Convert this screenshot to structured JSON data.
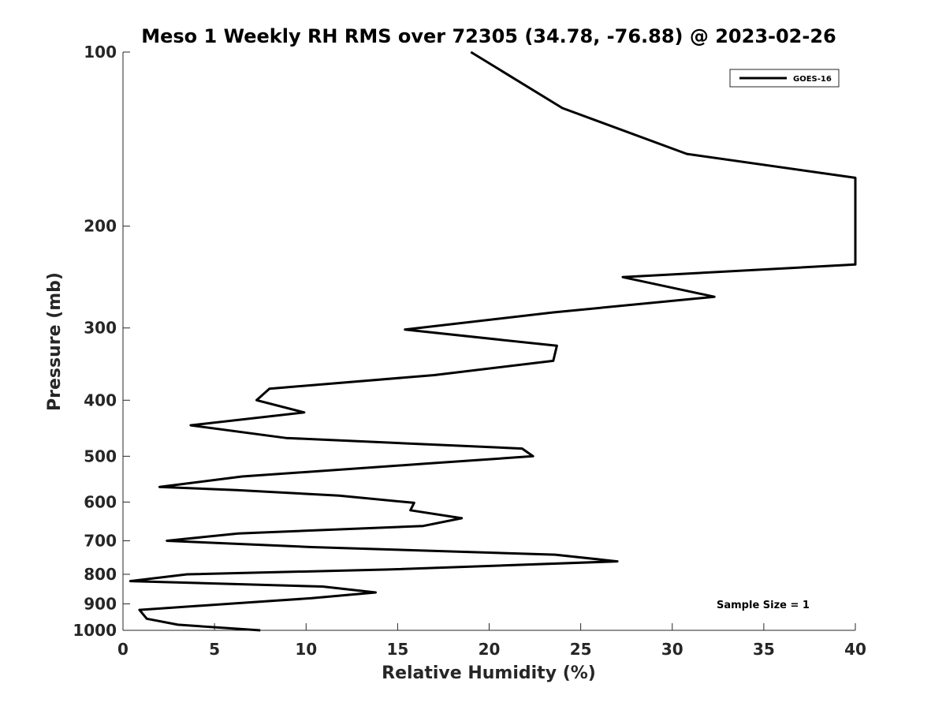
{
  "chart_data": {
    "type": "line",
    "title": "Meso 1 Weekly RH RMS over 72305 (34.78, -76.88) @ 2023-02-26",
    "xlabel": "Relative Humidity (%)",
    "ylabel": "Pressure (mb)",
    "xlim": [
      0,
      40
    ],
    "ylim": [
      100,
      1000
    ],
    "y_scale": "log",
    "y_reversed": true,
    "grid": false,
    "xticks": [
      0,
      5,
      10,
      15,
      20,
      25,
      30,
      35,
      40
    ],
    "yticks": [
      100,
      200,
      300,
      400,
      500,
      600,
      700,
      800,
      900,
      1000
    ],
    "legend_position": "top-right",
    "annotation": "Sample Size = 1",
    "series": [
      {
        "name": "GOES-16",
        "color": "#000000",
        "points": [
          [
            19.0,
            100
          ],
          [
            24.0,
            125
          ],
          [
            30.8,
            150
          ],
          [
            40.0,
            165
          ],
          [
            40.0,
            233
          ],
          [
            27.3,
            245
          ],
          [
            32.3,
            265
          ],
          [
            23.5,
            282
          ],
          [
            15.4,
            302
          ],
          [
            23.7,
            322
          ],
          [
            23.5,
            342
          ],
          [
            17.0,
            362
          ],
          [
            8.0,
            382
          ],
          [
            7.3,
            400
          ],
          [
            9.9,
            420
          ],
          [
            3.7,
            442
          ],
          [
            8.9,
            465
          ],
          [
            21.8,
            485
          ],
          [
            22.4,
            500
          ],
          [
            16.5,
            515
          ],
          [
            6.5,
            542
          ],
          [
            2.0,
            565
          ],
          [
            6.2,
            572
          ],
          [
            11.8,
            585
          ],
          [
            15.9,
            602
          ],
          [
            15.7,
            620
          ],
          [
            18.5,
            640
          ],
          [
            16.4,
            660
          ],
          [
            6.3,
            680
          ],
          [
            2.4,
            700
          ],
          [
            10.3,
            718
          ],
          [
            23.6,
            740
          ],
          [
            27.0,
            760
          ],
          [
            14.5,
            785
          ],
          [
            3.5,
            800
          ],
          [
            0.4,
            822
          ],
          [
            10.9,
            840
          ],
          [
            13.8,
            860
          ],
          [
            10.3,
            880
          ],
          [
            5.7,
            900
          ],
          [
            0.9,
            922
          ],
          [
            1.3,
            955
          ],
          [
            3.0,
            978
          ],
          [
            7.5,
            1000
          ]
        ]
      }
    ]
  }
}
